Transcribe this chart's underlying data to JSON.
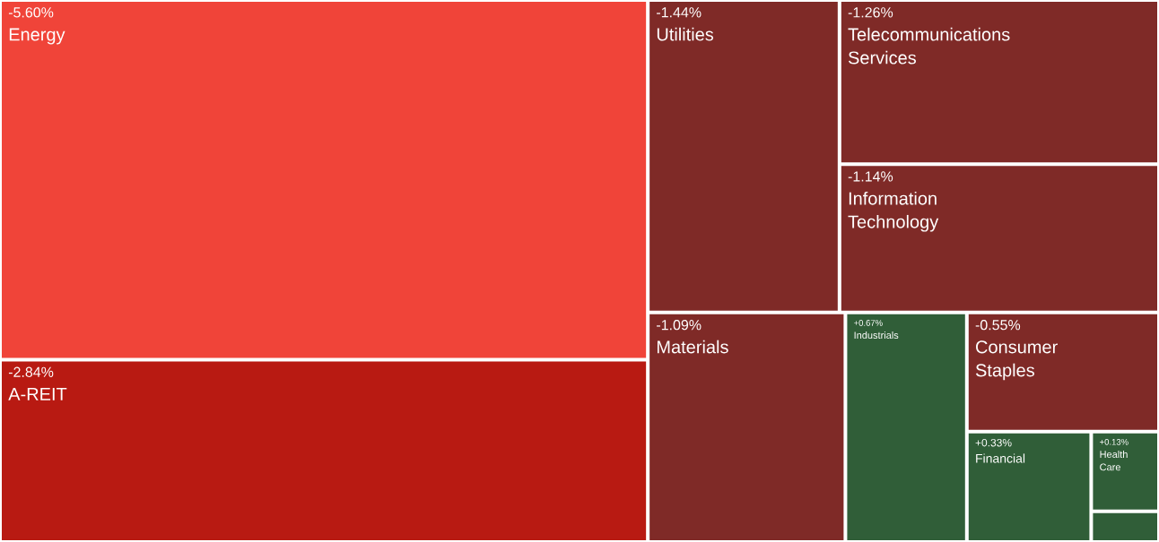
{
  "chart_data": {
    "type": "other",
    "categories": [
      "Energy",
      "A-REIT",
      "Utilities",
      "Telecommunications Services",
      "Information Technology",
      "Materials",
      "Industrials",
      "Consumer Staples",
      "Financial",
      "Health Care",
      null
    ],
    "values": [
      -5.6,
      -2.84,
      -1.44,
      -1.26,
      -1.14,
      -1.09,
      0.67,
      -0.55,
      0.33,
      0.13,
      null
    ],
    "value_labels": [
      "-5.60%",
      "-2.84%",
      "-1.44%",
      "-1.26%",
      "-1.14%",
      "-1.09%",
      "+0.67%",
      "-0.55%",
      "+0.33%",
      "+0.13%",
      null
    ],
    "colors": [
      "#f04439",
      "#b81a12",
      "#7f2a27",
      "#7f2a27",
      "#7f2a27",
      "#7f2a27",
      "#305e38",
      "#7f2a27",
      "#305e38",
      "#305e38",
      "#305e38"
    ]
  }
}
